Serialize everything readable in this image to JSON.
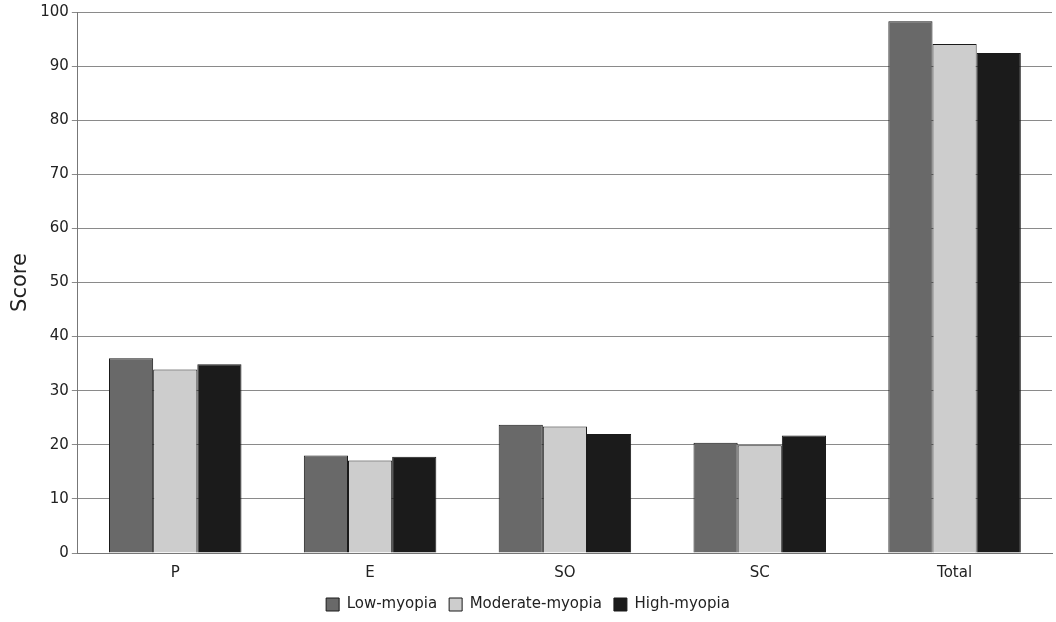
{
  "chart_data": {
    "type": "bar",
    "ylabel": "Score",
    "categories": [
      "P",
      "E",
      "SO",
      "SC",
      "Total"
    ],
    "series": [
      {
        "name": "Low-myopia",
        "color": "#696969",
        "values": [
          36.0,
          18.0,
          23.7,
          20.4,
          98.3
        ]
      },
      {
        "name": "Moderate-myopia",
        "color": "#cdcdcd",
        "values": [
          33.9,
          17.1,
          23.4,
          19.9,
          94.1
        ]
      },
      {
        "name": "High-myopia",
        "color": "#1b1b1b",
        "values": [
          34.9,
          17.8,
          22.0,
          21.7,
          92.4
        ]
      }
    ],
    "ylim": [
      0,
      100
    ],
    "yticks": [
      0,
      10,
      20,
      30,
      40,
      50,
      60,
      70,
      80,
      90,
      100
    ],
    "grid": "y",
    "legend": "bottom"
  }
}
